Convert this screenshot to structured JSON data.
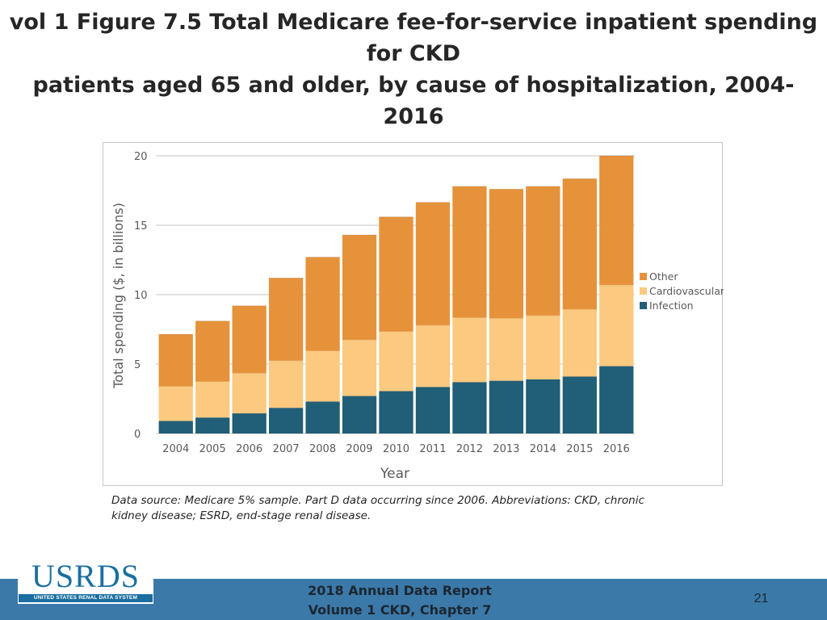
{
  "slide": {
    "title_line1": "vol 1 Figure 7.5 Total Medicare fee-for-service inpatient spending for CKD",
    "title_line2": "patients aged 65 and older, by cause of hospitalization, 2004-2016",
    "source_line1": "Data source: Medicare 5% sample. Part D data occurring since 2006. Abbreviations: CKD, chronic",
    "source_line2": "kidney disease; ESRD, end-stage renal disease.",
    "footer_line1": "2018 Annual Data Report",
    "footer_line2": "Volume 1 CKD, Chapter 7",
    "page_number": "21",
    "logo_text": "USRDS",
    "logo_subtext": "UNITED STATES RENAL DATA SYSTEM"
  },
  "colors": {
    "infection": "#215e78",
    "cardiovascular": "#fbc97f",
    "other": "#e6923a",
    "footer": "#3b79a8"
  },
  "chart_data": {
    "type": "bar",
    "stacked": true,
    "title": "",
    "xlabel": "Year",
    "ylabel": "Total spending ($, in billions)",
    "ylim": [
      0,
      20
    ],
    "yticks": [
      "0",
      "5",
      "10",
      "15",
      "20"
    ],
    "grid": true,
    "legend_position": "right",
    "categories": [
      "2004",
      "2005",
      "2006",
      "2007",
      "2008",
      "2009",
      "2010",
      "2011",
      "2012",
      "2013",
      "2014",
      "2015",
      "2016"
    ],
    "series": [
      {
        "name": "Infection",
        "color": "#215e78",
        "values": [
          0.9,
          1.15,
          1.45,
          1.85,
          2.3,
          2.7,
          3.05,
          3.35,
          3.7,
          3.8,
          3.9,
          4.1,
          4.85
        ]
      },
      {
        "name": "Cardiovascular",
        "color": "#fbc97f",
        "values": [
          2.5,
          2.6,
          2.9,
          3.4,
          3.65,
          4.05,
          4.3,
          4.45,
          4.65,
          4.5,
          4.6,
          4.85,
          5.85
        ]
      },
      {
        "name": "Other",
        "color": "#e6923a",
        "values": [
          3.75,
          4.35,
          4.85,
          5.95,
          6.75,
          7.55,
          8.25,
          8.85,
          9.45,
          9.3,
          9.3,
          9.4,
          9.3
        ]
      }
    ],
    "legend_order": [
      "Other",
      "Cardiovascular",
      "Infection"
    ]
  }
}
